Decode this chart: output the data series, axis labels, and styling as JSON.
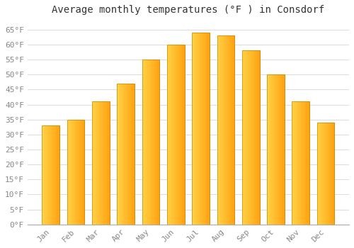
{
  "title": "Average monthly temperatures (°F ) in Consdorf",
  "months": [
    "Jan",
    "Feb",
    "Mar",
    "Apr",
    "May",
    "Jun",
    "Jul",
    "Aug",
    "Sep",
    "Oct",
    "Nov",
    "Dec"
  ],
  "values": [
    33,
    35,
    41,
    47,
    55,
    60,
    64,
    63,
    58,
    50,
    41,
    34
  ],
  "bar_color_left": "#FFD044",
  "bar_color_right": "#FFA010",
  "bar_edge_color": "#CC8800",
  "ylim": [
    0,
    68
  ],
  "yticks": [
    0,
    5,
    10,
    15,
    20,
    25,
    30,
    35,
    40,
    45,
    50,
    55,
    60,
    65
  ],
  "ytick_labels": [
    "0°F",
    "5°F",
    "10°F",
    "15°F",
    "20°F",
    "25°F",
    "30°F",
    "35°F",
    "40°F",
    "45°F",
    "50°F",
    "55°F",
    "60°F",
    "65°F"
  ],
  "background_color": "#ffffff",
  "grid_color": "#dddddd",
  "title_fontsize": 10,
  "tick_fontsize": 8,
  "font_family": "monospace",
  "title_color": "#333333",
  "tick_color": "#888888"
}
